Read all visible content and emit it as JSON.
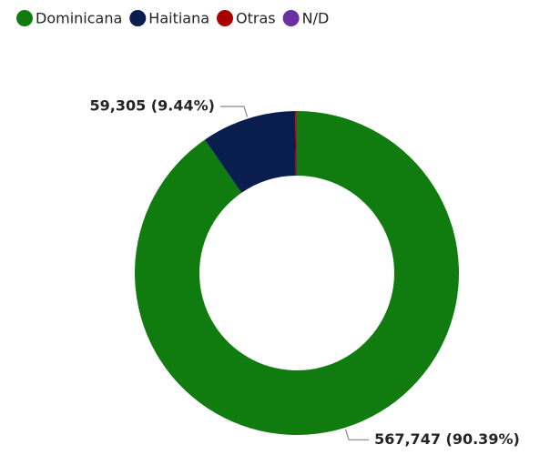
{
  "chart_data": {
    "type": "donut",
    "categories": [
      "Dominicana",
      "Haitiana",
      "Otras",
      "N/D"
    ],
    "values": [
      567747,
      59305,
      1000,
      56
    ],
    "value_labels": [
      "567,747 (90.39%)",
      "59,305 (9.44%)",
      null,
      null
    ],
    "colors": [
      "#107c10",
      "#0a1e4d",
      "#a80000",
      "#6b2fa0"
    ],
    "legend": "top-left"
  }
}
